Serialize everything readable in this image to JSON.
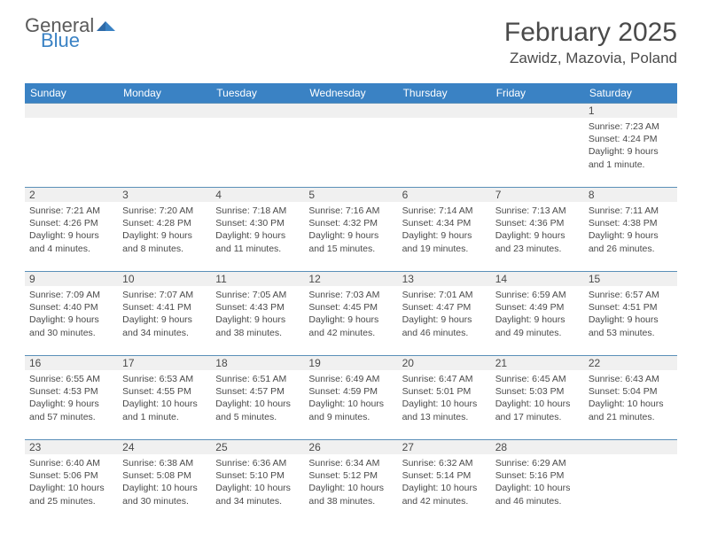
{
  "logo": {
    "general": "General",
    "blue": "Blue"
  },
  "title": "February 2025",
  "location": "Zawidz, Mazovia, Poland",
  "colors": {
    "header_bar": "#3a82c4",
    "row_divider": "#5a8fb8",
    "daynum_bg": "#f0f0f0",
    "text": "#4a4a4a",
    "logo_gray": "#5a5a5a",
    "logo_blue": "#3a82c4"
  },
  "weekdays": [
    "Sunday",
    "Monday",
    "Tuesday",
    "Wednesday",
    "Thursday",
    "Friday",
    "Saturday"
  ],
  "weeks": [
    [
      null,
      null,
      null,
      null,
      null,
      null,
      {
        "d": "1",
        "sr": "Sunrise: 7:23 AM",
        "ss": "Sunset: 4:24 PM",
        "dl1": "Daylight: 9 hours",
        "dl2": "and 1 minute."
      }
    ],
    [
      {
        "d": "2",
        "sr": "Sunrise: 7:21 AM",
        "ss": "Sunset: 4:26 PM",
        "dl1": "Daylight: 9 hours",
        "dl2": "and 4 minutes."
      },
      {
        "d": "3",
        "sr": "Sunrise: 7:20 AM",
        "ss": "Sunset: 4:28 PM",
        "dl1": "Daylight: 9 hours",
        "dl2": "and 8 minutes."
      },
      {
        "d": "4",
        "sr": "Sunrise: 7:18 AM",
        "ss": "Sunset: 4:30 PM",
        "dl1": "Daylight: 9 hours",
        "dl2": "and 11 minutes."
      },
      {
        "d": "5",
        "sr": "Sunrise: 7:16 AM",
        "ss": "Sunset: 4:32 PM",
        "dl1": "Daylight: 9 hours",
        "dl2": "and 15 minutes."
      },
      {
        "d": "6",
        "sr": "Sunrise: 7:14 AM",
        "ss": "Sunset: 4:34 PM",
        "dl1": "Daylight: 9 hours",
        "dl2": "and 19 minutes."
      },
      {
        "d": "7",
        "sr": "Sunrise: 7:13 AM",
        "ss": "Sunset: 4:36 PM",
        "dl1": "Daylight: 9 hours",
        "dl2": "and 23 minutes."
      },
      {
        "d": "8",
        "sr": "Sunrise: 7:11 AM",
        "ss": "Sunset: 4:38 PM",
        "dl1": "Daylight: 9 hours",
        "dl2": "and 26 minutes."
      }
    ],
    [
      {
        "d": "9",
        "sr": "Sunrise: 7:09 AM",
        "ss": "Sunset: 4:40 PM",
        "dl1": "Daylight: 9 hours",
        "dl2": "and 30 minutes."
      },
      {
        "d": "10",
        "sr": "Sunrise: 7:07 AM",
        "ss": "Sunset: 4:41 PM",
        "dl1": "Daylight: 9 hours",
        "dl2": "and 34 minutes."
      },
      {
        "d": "11",
        "sr": "Sunrise: 7:05 AM",
        "ss": "Sunset: 4:43 PM",
        "dl1": "Daylight: 9 hours",
        "dl2": "and 38 minutes."
      },
      {
        "d": "12",
        "sr": "Sunrise: 7:03 AM",
        "ss": "Sunset: 4:45 PM",
        "dl1": "Daylight: 9 hours",
        "dl2": "and 42 minutes."
      },
      {
        "d": "13",
        "sr": "Sunrise: 7:01 AM",
        "ss": "Sunset: 4:47 PM",
        "dl1": "Daylight: 9 hours",
        "dl2": "and 46 minutes."
      },
      {
        "d": "14",
        "sr": "Sunrise: 6:59 AM",
        "ss": "Sunset: 4:49 PM",
        "dl1": "Daylight: 9 hours",
        "dl2": "and 49 minutes."
      },
      {
        "d": "15",
        "sr": "Sunrise: 6:57 AM",
        "ss": "Sunset: 4:51 PM",
        "dl1": "Daylight: 9 hours",
        "dl2": "and 53 minutes."
      }
    ],
    [
      {
        "d": "16",
        "sr": "Sunrise: 6:55 AM",
        "ss": "Sunset: 4:53 PM",
        "dl1": "Daylight: 9 hours",
        "dl2": "and 57 minutes."
      },
      {
        "d": "17",
        "sr": "Sunrise: 6:53 AM",
        "ss": "Sunset: 4:55 PM",
        "dl1": "Daylight: 10 hours",
        "dl2": "and 1 minute."
      },
      {
        "d": "18",
        "sr": "Sunrise: 6:51 AM",
        "ss": "Sunset: 4:57 PM",
        "dl1": "Daylight: 10 hours",
        "dl2": "and 5 minutes."
      },
      {
        "d": "19",
        "sr": "Sunrise: 6:49 AM",
        "ss": "Sunset: 4:59 PM",
        "dl1": "Daylight: 10 hours",
        "dl2": "and 9 minutes."
      },
      {
        "d": "20",
        "sr": "Sunrise: 6:47 AM",
        "ss": "Sunset: 5:01 PM",
        "dl1": "Daylight: 10 hours",
        "dl2": "and 13 minutes."
      },
      {
        "d": "21",
        "sr": "Sunrise: 6:45 AM",
        "ss": "Sunset: 5:03 PM",
        "dl1": "Daylight: 10 hours",
        "dl2": "and 17 minutes."
      },
      {
        "d": "22",
        "sr": "Sunrise: 6:43 AM",
        "ss": "Sunset: 5:04 PM",
        "dl1": "Daylight: 10 hours",
        "dl2": "and 21 minutes."
      }
    ],
    [
      {
        "d": "23",
        "sr": "Sunrise: 6:40 AM",
        "ss": "Sunset: 5:06 PM",
        "dl1": "Daylight: 10 hours",
        "dl2": "and 25 minutes."
      },
      {
        "d": "24",
        "sr": "Sunrise: 6:38 AM",
        "ss": "Sunset: 5:08 PM",
        "dl1": "Daylight: 10 hours",
        "dl2": "and 30 minutes."
      },
      {
        "d": "25",
        "sr": "Sunrise: 6:36 AM",
        "ss": "Sunset: 5:10 PM",
        "dl1": "Daylight: 10 hours",
        "dl2": "and 34 minutes."
      },
      {
        "d": "26",
        "sr": "Sunrise: 6:34 AM",
        "ss": "Sunset: 5:12 PM",
        "dl1": "Daylight: 10 hours",
        "dl2": "and 38 minutes."
      },
      {
        "d": "27",
        "sr": "Sunrise: 6:32 AM",
        "ss": "Sunset: 5:14 PM",
        "dl1": "Daylight: 10 hours",
        "dl2": "and 42 minutes."
      },
      {
        "d": "28",
        "sr": "Sunrise: 6:29 AM",
        "ss": "Sunset: 5:16 PM",
        "dl1": "Daylight: 10 hours",
        "dl2": "and 46 minutes."
      },
      null
    ]
  ]
}
